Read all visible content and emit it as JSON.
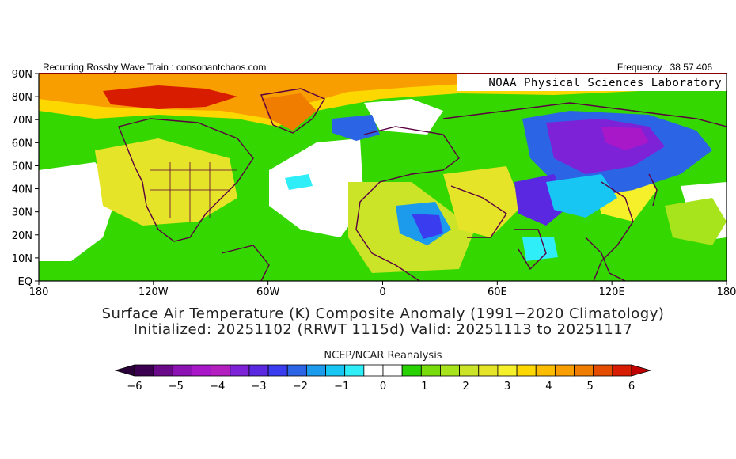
{
  "header": {
    "left_text": "Recurring Rossby Wave Train : consonantchaos.com",
    "right_text": "Frequency : 38 57 406",
    "lab_label": "NOAA Physical Sciences Laboratory"
  },
  "map": {
    "lat_labels": [
      "90N",
      "80N",
      "70N",
      "60N",
      "50N",
      "40N",
      "30N",
      "20N",
      "10N",
      "EQ"
    ],
    "lon_labels": [
      "180",
      "120W",
      "60W",
      "0",
      "60E",
      "120E",
      "180"
    ]
  },
  "title": {
    "line1": "Surface Air Temperature (K) Composite Anomaly (1991−2020 Climatology)",
    "line2": "Initialized: 20251102 (RRWT 1115d) Valid: 20251113 to 20251117"
  },
  "colorbar": {
    "title": "NCEP/NCAR Reanalysis",
    "tick_labels": [
      "−6",
      "−5",
      "−4",
      "−3",
      "−2",
      "−1",
      "0",
      "1",
      "2",
      "3",
      "4",
      "5",
      "6"
    ],
    "colors": [
      "#3c0050",
      "#6a0a8a",
      "#8c12b4",
      "#a818c8",
      "#b420c0",
      "#7e22d8",
      "#5a28e0",
      "#3a3cf0",
      "#2c64e6",
      "#1c9aec",
      "#18c6f4",
      "#30eef8",
      "#ffffff",
      "#ffffff",
      "#28d200",
      "#78dc0c",
      "#a8e41c",
      "#cce428",
      "#e6e428",
      "#f6f02a",
      "#fcd800",
      "#fcbc00",
      "#f89e00",
      "#f07c00",
      "#e44c00",
      "#d81c00"
    ],
    "arrow_left_color": "#2a0038",
    "arrow_right_color": "#c00000"
  }
}
